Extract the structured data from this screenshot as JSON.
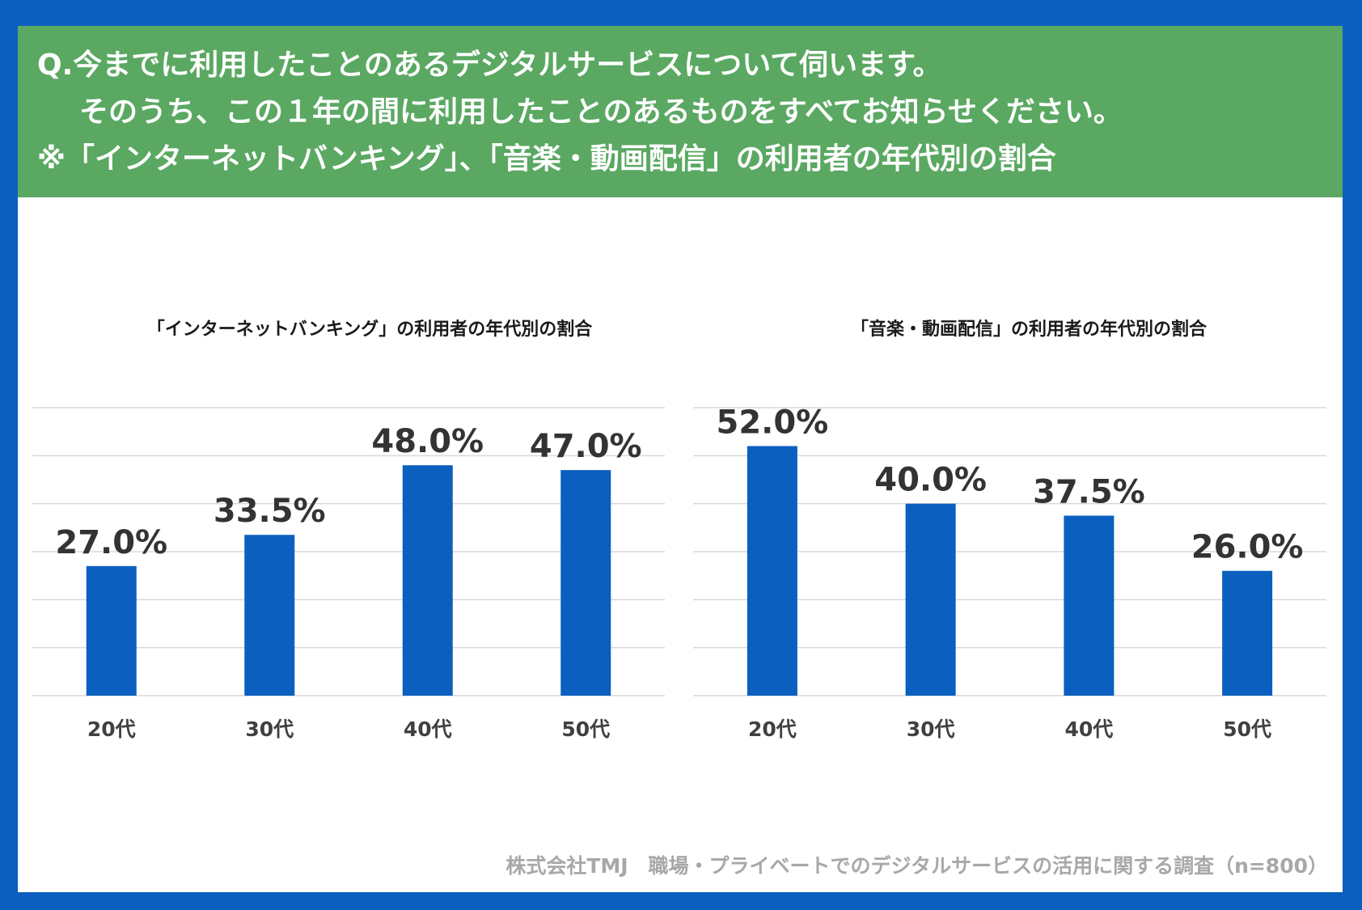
{
  "header": {
    "line1": "Q.今までに利用したことのあるデジタルサービスについて伺います。",
    "line2": "そのうち、この１年の間に利用したことのあるものをすべてお知らせください。",
    "line3": "※「インターネットバンキング」、「音楽・動画配信」の利用者の年代別の割合"
  },
  "footnote": "株式会社TMJ　職場・プライベートでのデジタルサービスの活用に関する調査（n=800）",
  "colors": {
    "frame": "#0b5fbf",
    "header_bg": "#5aa862",
    "bar": "#0b5fbf",
    "grid": "#d9d9d9",
    "label": "#333333"
  },
  "chart_data": [
    {
      "type": "bar",
      "title": "「インターネットバンキング」の利用者の年代別の割合",
      "categories": [
        "20代",
        "30代",
        "40代",
        "50代"
      ],
      "values": [
        27.0,
        33.5,
        48.0,
        47.0
      ],
      "value_labels": [
        "27.0%",
        "33.5%",
        "48.0%",
        "47.0%"
      ],
      "ylim": [
        0,
        60
      ],
      "grid": true,
      "xlabel": "",
      "ylabel": ""
    },
    {
      "type": "bar",
      "title": "「音楽・動画配信」の利用者の年代別の割合",
      "categories": [
        "20代",
        "30代",
        "40代",
        "50代"
      ],
      "values": [
        52.0,
        40.0,
        37.5,
        26.0
      ],
      "value_labels": [
        "52.0%",
        "40.0%",
        "37.5%",
        "26.0%"
      ],
      "ylim": [
        0,
        60
      ],
      "grid": true,
      "xlabel": "",
      "ylabel": ""
    }
  ]
}
